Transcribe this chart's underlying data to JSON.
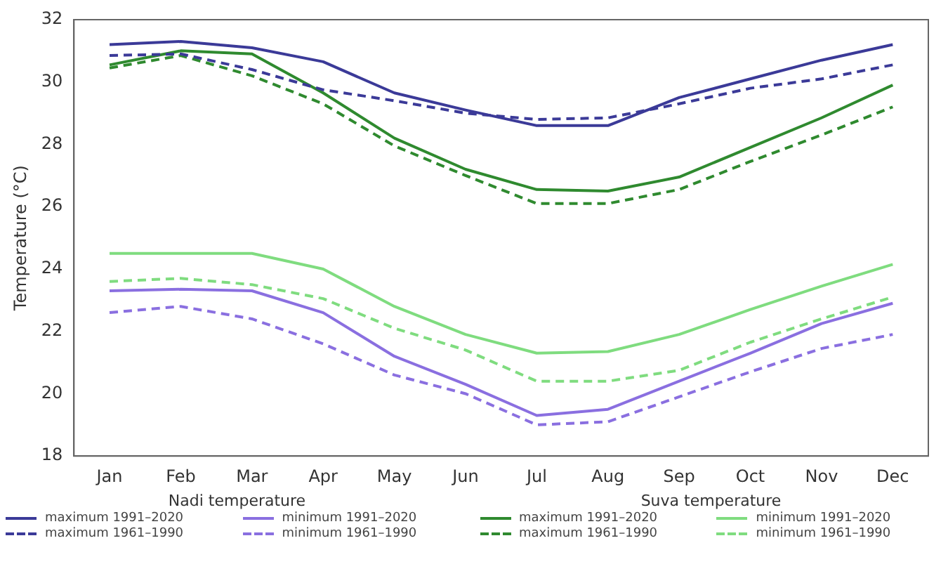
{
  "chart_data": {
    "type": "line",
    "ylabel": "Temperature (°C)",
    "categories": [
      "Jan",
      "Feb",
      "Mar",
      "Apr",
      "May",
      "Jun",
      "Jul",
      "Aug",
      "Sep",
      "Oct",
      "Nov",
      "Dec"
    ],
    "ylim": [
      18,
      32
    ],
    "yticks": [
      18,
      20,
      22,
      24,
      26,
      28,
      30,
      32
    ],
    "grid": false,
    "legend": "bottom",
    "marker": "none",
    "annotations": [
      "Nadi temperature",
      "Suva temperature"
    ],
    "series": [
      {
        "name": "maximum 1991–2020",
        "color": "#3b3a98",
        "line_style": "solid",
        "values": [
          31.2,
          31.3,
          31.1,
          30.65,
          29.65,
          29.1,
          28.6,
          28.6,
          29.5,
          30.1,
          30.7,
          31.2
        ]
      },
      {
        "name": "minimum 1991–2020",
        "color": "#8a6fe0",
        "line_style": "solid",
        "values": [
          23.3,
          23.35,
          23.3,
          22.6,
          21.2,
          20.3,
          19.3,
          19.5,
          20.4,
          21.3,
          22.25,
          22.9
        ]
      },
      {
        "name": "maximum 1961–1990",
        "color": "#3b3a98",
        "line_style": "dashed",
        "values": [
          30.85,
          30.9,
          30.4,
          29.75,
          29.4,
          29.0,
          28.8,
          28.85,
          29.3,
          29.8,
          30.1,
          30.55
        ]
      },
      {
        "name": "minimum 1961–1990",
        "color": "#8a6fe0",
        "line_style": "dashed",
        "values": [
          22.6,
          22.8,
          22.4,
          21.6,
          20.6,
          20.0,
          19.0,
          19.1,
          19.9,
          20.7,
          21.45,
          21.9
        ]
      },
      {
        "name": "maximum 1991–2020",
        "color": "#2f8a2f",
        "line_style": "solid",
        "values": [
          30.55,
          31.0,
          30.9,
          29.65,
          28.2,
          27.2,
          26.55,
          26.5,
          26.95,
          27.9,
          28.85,
          29.9
        ]
      },
      {
        "name": "minimum 1991–2020",
        "color": "#7fdc7f",
        "line_style": "solid",
        "values": [
          24.5,
          24.5,
          24.5,
          24.0,
          22.8,
          21.9,
          21.3,
          21.35,
          21.9,
          22.7,
          23.45,
          24.15
        ]
      },
      {
        "name": "maximum 1961–1990",
        "color": "#2f8a2f",
        "line_style": "dashed",
        "values": [
          30.45,
          30.85,
          30.2,
          29.3,
          27.95,
          27.0,
          26.1,
          26.1,
          26.55,
          27.45,
          28.3,
          29.2
        ]
      },
      {
        "name": "minimum 1961–1990",
        "color": "#7fdc7f",
        "line_style": "dashed",
        "values": [
          23.6,
          23.7,
          23.5,
          23.05,
          22.1,
          21.4,
          20.4,
          20.4,
          20.75,
          21.65,
          22.4,
          23.1
        ]
      }
    ]
  }
}
